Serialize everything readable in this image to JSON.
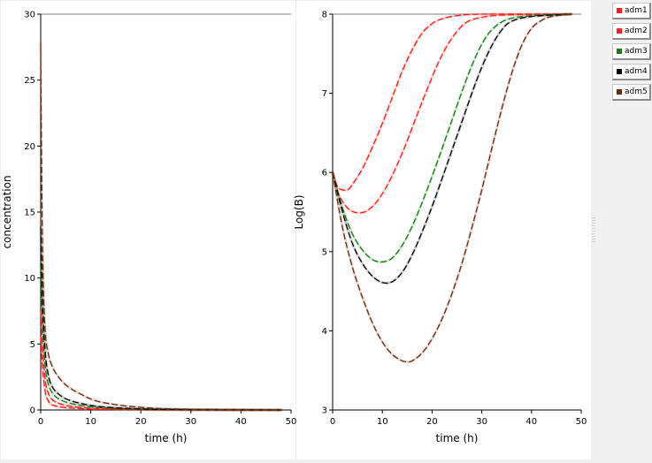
{
  "colors": {
    "adm1": "#ff1a1a",
    "adm2": "#ff2020",
    "adm3": "#1a7a1a",
    "adm4": "#000000",
    "adm5": "#6b2d12"
  },
  "legend": [
    {
      "label": "adm1",
      "color": "#ff1a1a"
    },
    {
      "label": "adm2",
      "color": "#ff2020"
    },
    {
      "label": "adm3",
      "color": "#1a7a1a"
    },
    {
      "label": "adm4",
      "color": "#000000"
    },
    {
      "label": "adm5",
      "color": "#6b2d12"
    }
  ],
  "chart_data": [
    {
      "type": "line",
      "xlabel": "time (h)",
      "ylabel": "concentration",
      "xlim": [
        0,
        50
      ],
      "ylim": [
        0,
        30
      ],
      "xticks": [
        0,
        10,
        20,
        30,
        40,
        50
      ],
      "yticks": [
        0,
        5,
        10,
        15,
        20,
        25,
        30
      ],
      "line_style": "dashed",
      "series": [
        {
          "name": "adm1",
          "x": [
            0,
            0.2,
            0.5,
            1,
            1.5,
            2,
            3,
            5,
            8,
            12,
            20,
            30,
            48
          ],
          "y": [
            5.6,
            4.2,
            2.6,
            1.2,
            0.7,
            0.45,
            0.3,
            0.18,
            0.1,
            0.05,
            0.02,
            0.01,
            0
          ]
        },
        {
          "name": "adm2",
          "x": [
            0,
            0.2,
            0.5,
            1,
            1.5,
            2,
            3,
            5,
            8,
            12,
            20,
            30,
            48
          ],
          "y": [
            7.5,
            6.0,
            4.0,
            2.0,
            1.3,
            0.9,
            0.6,
            0.35,
            0.2,
            0.1,
            0.04,
            0.01,
            0
          ]
        },
        {
          "name": "adm3",
          "x": [
            0,
            0.2,
            0.5,
            1,
            1.5,
            2,
            3,
            5,
            8,
            12,
            20,
            30,
            48
          ],
          "y": [
            11.0,
            8.5,
            5.5,
            3.0,
            2.0,
            1.5,
            1.0,
            0.6,
            0.35,
            0.18,
            0.06,
            0.02,
            0
          ]
        },
        {
          "name": "adm4",
          "x": [
            0,
            0.2,
            0.5,
            1,
            1.5,
            2,
            3,
            5,
            8,
            12,
            20,
            30,
            48
          ],
          "y": [
            13.8,
            10.5,
            7.0,
            4.0,
            2.7,
            2.0,
            1.4,
            0.85,
            0.5,
            0.25,
            0.08,
            0.02,
            0
          ]
        },
        {
          "name": "adm5",
          "x": [
            0,
            0.1,
            0.3,
            0.6,
            1,
            1.5,
            2,
            3,
            5,
            8,
            12,
            20,
            30,
            48
          ],
          "y": [
            27.8,
            22.0,
            14.0,
            8.5,
            5.5,
            4.3,
            3.6,
            2.8,
            1.9,
            1.2,
            0.6,
            0.2,
            0.05,
            0
          ]
        }
      ]
    },
    {
      "type": "line",
      "xlabel": "time (h)",
      "ylabel": "Log(B)",
      "xlim": [
        0,
        50
      ],
      "ylim": [
        3,
        8
      ],
      "xticks": [
        0,
        10,
        20,
        30,
        40,
        50
      ],
      "yticks": [
        3,
        4,
        5,
        6,
        7,
        8
      ],
      "line_style": "dashed",
      "series": [
        {
          "name": "adm1",
          "x": [
            0,
            1,
            2,
            3,
            4,
            6,
            8,
            10,
            12,
            14,
            16,
            18,
            20,
            22,
            25,
            30,
            48
          ],
          "y": [
            6.0,
            5.82,
            5.78,
            5.78,
            5.85,
            6.05,
            6.32,
            6.62,
            6.95,
            7.28,
            7.55,
            7.76,
            7.88,
            7.94,
            7.98,
            8.0,
            8.0
          ]
        },
        {
          "name": "adm2",
          "x": [
            0,
            1,
            3,
            5,
            7,
            9,
            11,
            13,
            15,
            17,
            19,
            21,
            23,
            25,
            27,
            30,
            35,
            48
          ],
          "y": [
            6.0,
            5.75,
            5.55,
            5.49,
            5.52,
            5.64,
            5.84,
            6.1,
            6.4,
            6.73,
            7.05,
            7.35,
            7.6,
            7.78,
            7.9,
            7.96,
            7.99,
            8.0
          ]
        },
        {
          "name": "adm3",
          "x": [
            0,
            2,
            4,
            6,
            8,
            10,
            12,
            14,
            16,
            18,
            20,
            22,
            24,
            26,
            28,
            30,
            32,
            35,
            40,
            48
          ],
          "y": [
            6.0,
            5.55,
            5.22,
            5.02,
            4.9,
            4.87,
            4.92,
            5.08,
            5.32,
            5.62,
            5.95,
            6.3,
            6.66,
            7.02,
            7.35,
            7.62,
            7.8,
            7.93,
            7.98,
            8.0
          ]
        },
        {
          "name": "adm4",
          "x": [
            0,
            2,
            4,
            6,
            8,
            10,
            12,
            14,
            16,
            18,
            20,
            22,
            24,
            26,
            28,
            30,
            32,
            34,
            36,
            40,
            48
          ],
          "y": [
            6.0,
            5.5,
            5.1,
            4.85,
            4.69,
            4.61,
            4.62,
            4.74,
            4.96,
            5.25,
            5.57,
            5.92,
            6.28,
            6.64,
            7.0,
            7.33,
            7.6,
            7.8,
            7.91,
            7.97,
            8.0
          ]
        },
        {
          "name": "adm5",
          "x": [
            0,
            2,
            4,
            6,
            8,
            10,
            12,
            14,
            15,
            16,
            18,
            20,
            22,
            24,
            26,
            28,
            30,
            32,
            34,
            36,
            38,
            40,
            42,
            44,
            48
          ],
          "y": [
            6.0,
            5.3,
            4.8,
            4.42,
            4.1,
            3.86,
            3.7,
            3.62,
            3.61,
            3.62,
            3.72,
            3.9,
            4.15,
            4.47,
            4.85,
            5.3,
            5.78,
            6.3,
            6.8,
            7.25,
            7.6,
            7.82,
            7.92,
            7.97,
            8.0
          ]
        }
      ]
    }
  ]
}
